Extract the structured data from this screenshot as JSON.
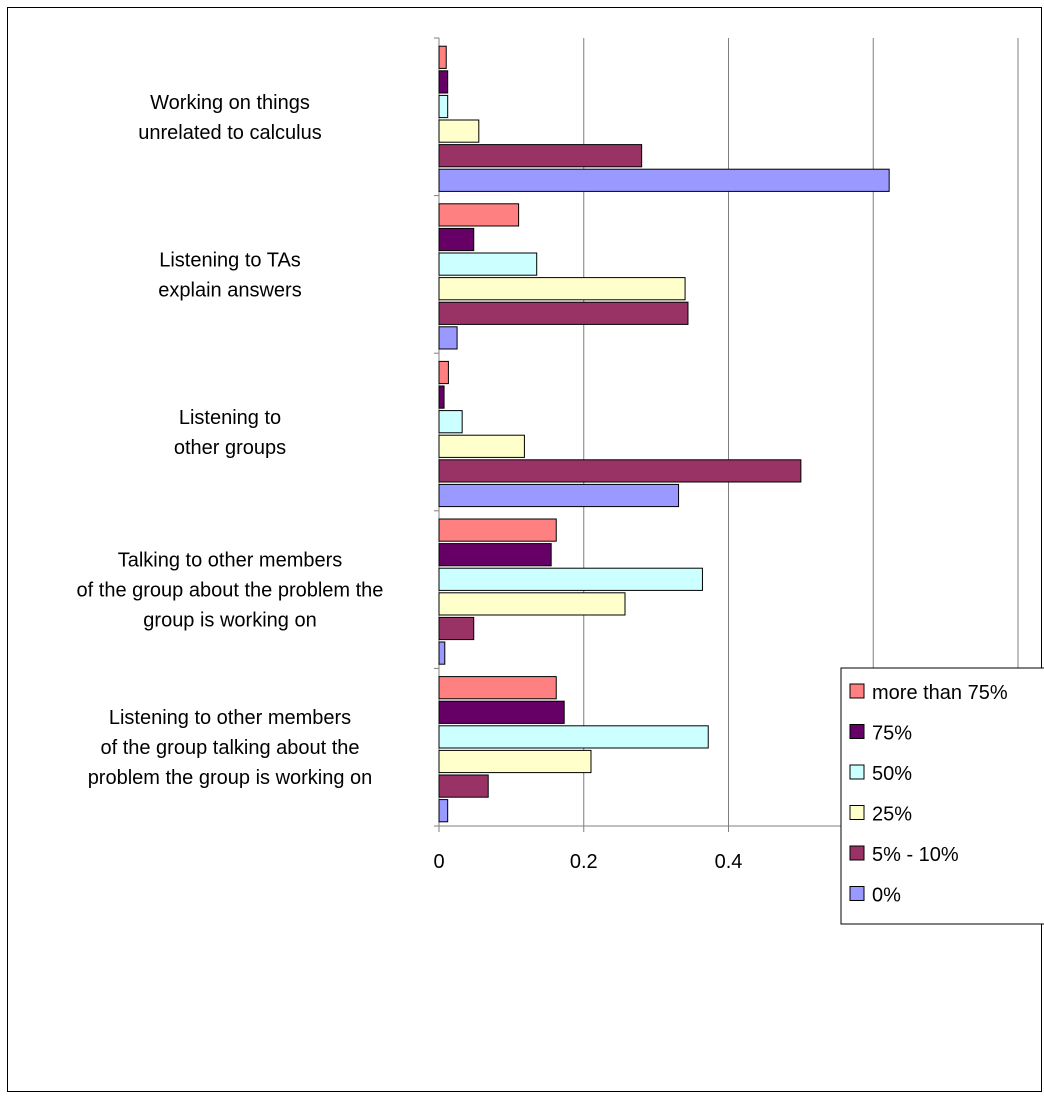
{
  "chart_data": {
    "type": "bar",
    "orientation": "horizontal",
    "categories": [
      [
        "Working on things",
        "unrelated to calculus"
      ],
      [
        "Listening to TAs",
        "explain answers"
      ],
      [
        "Listening to",
        "other groups"
      ],
      [
        "Talking to other members",
        "of the group about the problem the",
        "group is working on"
      ],
      [
        "Listening to other members",
        "of the group talking about the",
        "problem the group is working on"
      ]
    ],
    "series": [
      {
        "name": "more than 75%",
        "color": "#ff8080",
        "values": [
          0.01,
          0.11,
          0.013,
          0.162,
          0.162
        ]
      },
      {
        "name": "75%",
        "color": "#660066",
        "values": [
          0.012,
          0.048,
          0.007,
          0.155,
          0.173
        ]
      },
      {
        "name": "50%",
        "color": "#ccffff",
        "values": [
          0.012,
          0.135,
          0.032,
          0.364,
          0.372
        ]
      },
      {
        "name": "25%",
        "color": "#ffffcc",
        "values": [
          0.055,
          0.34,
          0.118,
          0.257,
          0.21
        ]
      },
      {
        "name": "5% - 10%",
        "color": "#993366",
        "values": [
          0.28,
          0.344,
          0.5,
          0.048,
          0.068
        ]
      },
      {
        "name": "0%",
        "color": "#9999ff",
        "values": [
          0.622,
          0.025,
          0.331,
          0.008,
          0.012
        ]
      }
    ],
    "xlim": [
      0,
      0.8
    ],
    "xticks": [
      "0",
      "0.2",
      "0.4",
      "0.6",
      "0.8"
    ],
    "grid": true,
    "legend": "right"
  }
}
